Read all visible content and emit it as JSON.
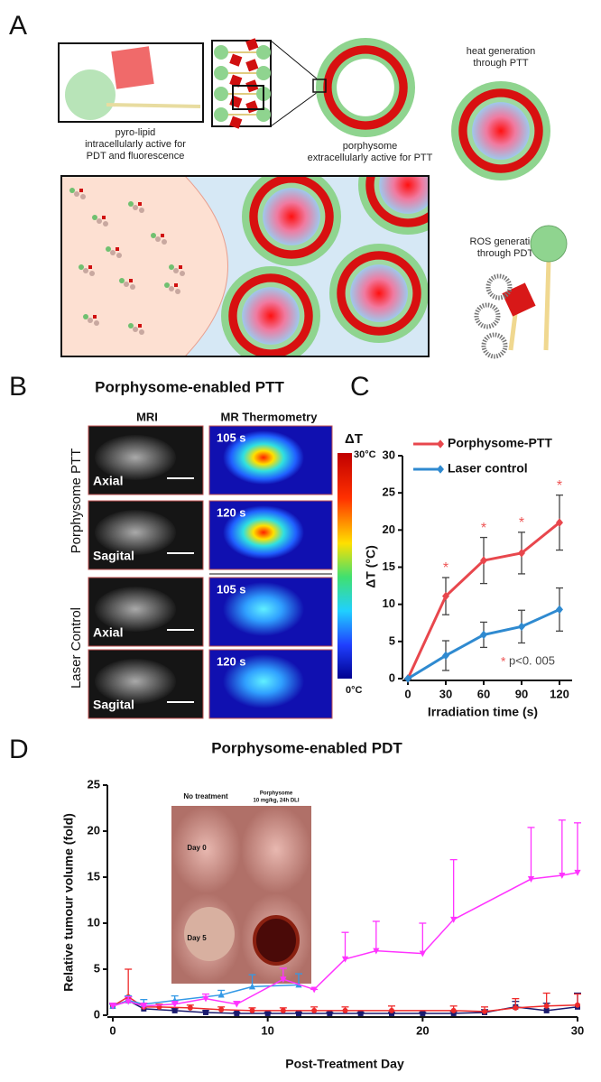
{
  "panel_a": {
    "label": "A",
    "pyro_lipid_caption": [
      "pyro-lipid",
      "intracellularly active for",
      "PDT and fluorescence"
    ],
    "porphysome_caption": [
      "porphysome",
      "extracellularly active for PTT"
    ],
    "heat_caption": [
      "heat generation",
      "through PTT"
    ],
    "ros_caption": [
      "ROS generation",
      "through PDT"
    ]
  },
  "panel_b": {
    "label": "B",
    "title": "Porphysome-enabled  PTT",
    "columns": [
      "MRI",
      "MR Thermometry"
    ],
    "row_groups": [
      "Porphysome PTT",
      "Laser Control"
    ],
    "images": [
      {
        "view": "Axial",
        "time": "105 s"
      },
      {
        "view": "Sagital",
        "time": "120 s"
      },
      {
        "view": "Axial",
        "time": "105 s"
      },
      {
        "view": "Sagital",
        "time": "120 s"
      }
    ],
    "colorbar": {
      "label": "ΔT",
      "max": "30°C",
      "min": "0°C"
    }
  },
  "chart_data": [
    {
      "type": "line",
      "panel_label": "C",
      "xlabel": "Irradiation time (s)",
      "ylabel": "ΔT (°C)",
      "x": [
        0,
        30,
        60,
        90,
        120
      ],
      "xlim": [
        0,
        130
      ],
      "xticks": [
        0,
        30,
        60,
        90,
        120
      ],
      "ylim": [
        0,
        30
      ],
      "yticks": [
        0,
        5,
        10,
        15,
        20,
        25,
        30
      ],
      "error_bars": "both",
      "legend": "upper left",
      "series": [
        {
          "name": "Porphysome-PTT",
          "color": "#e8474d",
          "marker": "diamond",
          "values": [
            0,
            11.1,
            15.9,
            16.9,
            21
          ],
          "errors": [
            0,
            2.5,
            3.1,
            2.8,
            3.7
          ]
        },
        {
          "name": "Laser control",
          "color": "#2f8ad0",
          "marker": "diamond",
          "values": [
            0,
            3.1,
            5.9,
            7,
            9.3
          ],
          "errors": [
            0,
            2,
            1.7,
            2.2,
            2.9
          ]
        }
      ],
      "significance_marker": "*",
      "significant_x": [
        30,
        60,
        90,
        120
      ],
      "annotation": "p<0. 005"
    },
    {
      "type": "line",
      "panel_label": "D",
      "title": "Porphysome-enabled  PDT",
      "xlabel": "Post-Treatment Day",
      "ylabel": "Relative tumour volume (fold)",
      "xlim": [
        0,
        30
      ],
      "xticks": [
        0,
        10,
        20,
        30
      ],
      "ylim": [
        0,
        25
      ],
      "yticks": [
        0,
        5,
        10,
        15,
        20,
        25
      ],
      "error_bars": "upper",
      "series": [
        {
          "color": "#1a1a6e",
          "marker": "square",
          "x": [
            0,
            1,
            2,
            4,
            6,
            8,
            10,
            12,
            14,
            16,
            18,
            20,
            22,
            24,
            26,
            28,
            30
          ],
          "values": [
            1,
            1.6,
            0.7,
            0.5,
            0.3,
            0.2,
            0.2,
            0.2,
            0.2,
            0.2,
            0.2,
            0.2,
            0.2,
            0.3,
            0.9,
            0.5,
            0.9
          ],
          "errors": [
            0.2,
            0.4,
            0.2,
            0.2,
            0.2,
            0.1,
            0.1,
            0.1,
            0.1,
            0.1,
            0.1,
            0.1,
            0.2,
            0.3,
            0.6,
            0.8,
            1.5
          ]
        },
        {
          "color": "#ee2a2a",
          "marker": "circle",
          "x": [
            0,
            1,
            2,
            3,
            5,
            7,
            9,
            11,
            13,
            15,
            18,
            22,
            24,
            26,
            28,
            30
          ],
          "values": [
            1,
            2,
            0.9,
            0.9,
            0.8,
            0.6,
            0.5,
            0.5,
            0.5,
            0.5,
            0.5,
            0.5,
            0.4,
            0.8,
            1,
            1.1
          ],
          "errors": [
            0.3,
            3,
            0.4,
            0.3,
            0.3,
            0.3,
            0.3,
            0.3,
            0.4,
            0.4,
            0.5,
            0.5,
            0.5,
            1,
            1.4,
            1.2
          ]
        },
        {
          "color": "#3399e6",
          "marker": "triangle",
          "x": [
            0,
            1,
            2,
            4,
            7,
            9,
            12
          ],
          "values": [
            1,
            1.6,
            1.2,
            1.6,
            2.2,
            3.1,
            3.3
          ],
          "errors": [
            0.2,
            0.5,
            0.5,
            0.5,
            0.5,
            1.3,
            1.2
          ]
        },
        {
          "color": "#ff33ff",
          "marker": "triangle-down",
          "x": [
            0,
            1,
            2,
            4,
            6,
            8,
            11,
            13,
            15,
            17,
            20,
            22,
            27,
            29,
            30
          ],
          "values": [
            1,
            1.5,
            1,
            1.2,
            1.8,
            1.2,
            3.9,
            2.8,
            6.1,
            7,
            6.7,
            10.4,
            14.8,
            15.2,
            15.5
          ],
          "errors": [
            0.3,
            0.5,
            0.3,
            0.3,
            0.5,
            0.3,
            1.2,
            0,
            2.9,
            3.2,
            3.3,
            6.5,
            5.6,
            6,
            5.4
          ]
        }
      ],
      "inset": {
        "columns": [
          [
            "No treatment"
          ],
          [
            "Porphysome",
            "10 mg/kg, 24h DLI"
          ]
        ],
        "rows": [
          "Day 0",
          "Day 5"
        ]
      }
    }
  ]
}
